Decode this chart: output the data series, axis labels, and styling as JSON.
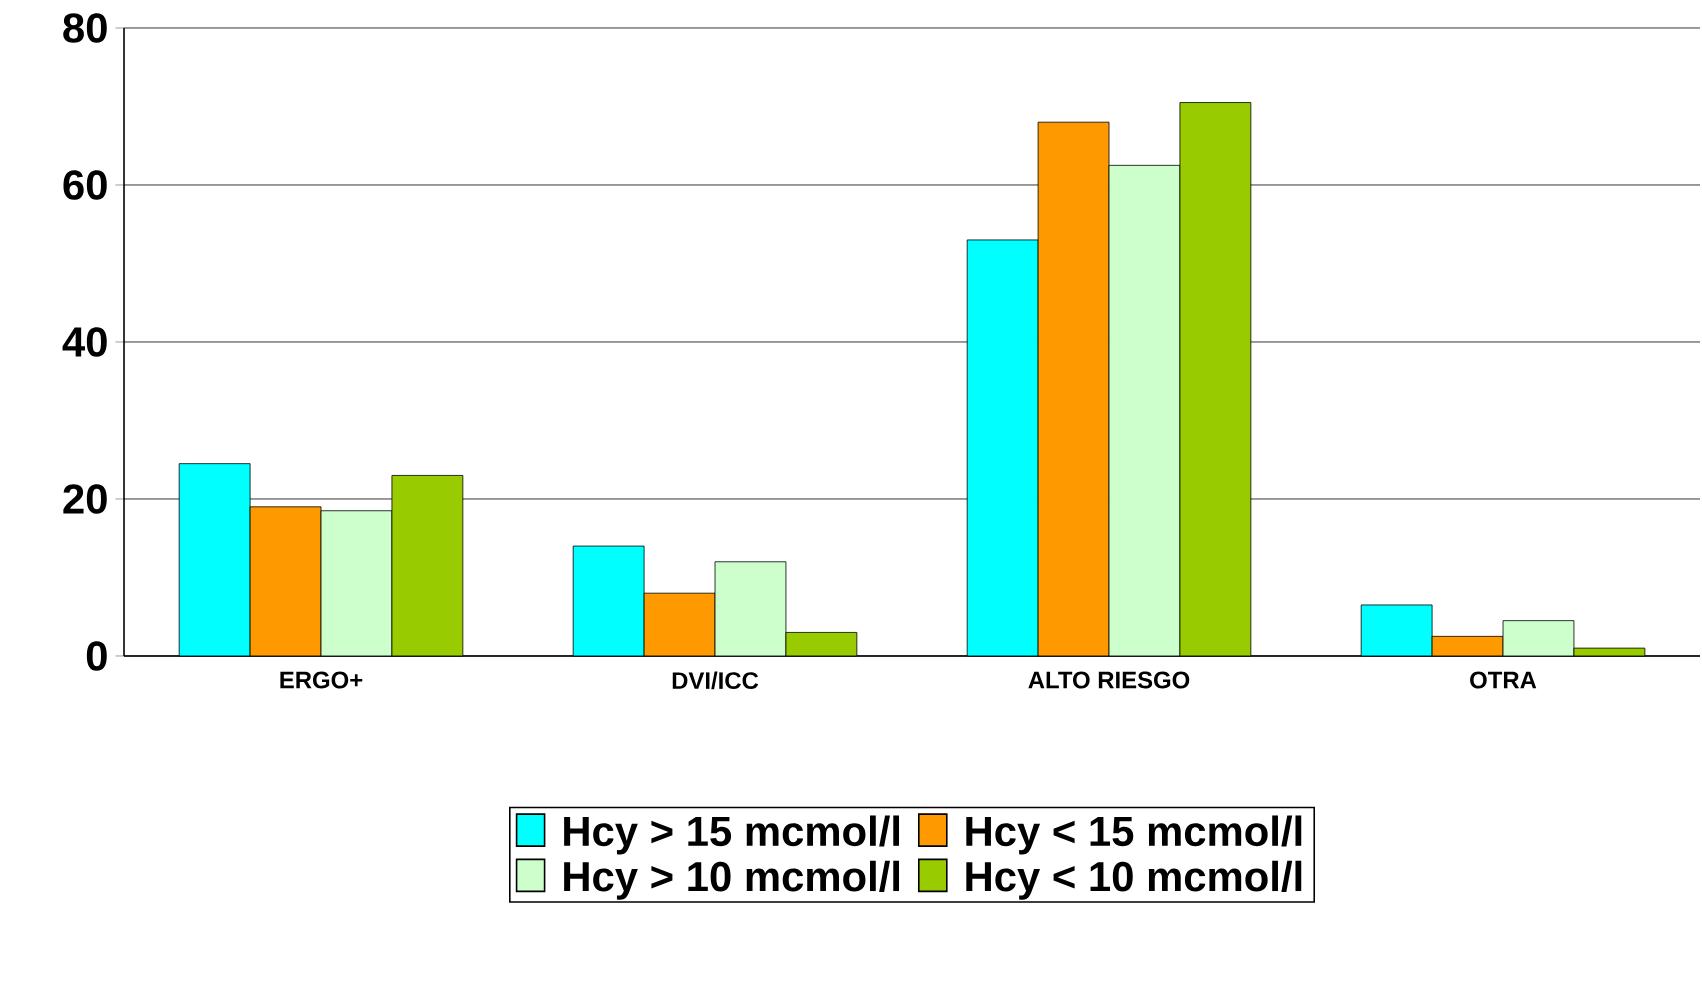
{
  "chart_data": {
    "type": "bar",
    "categories": [
      "ERGO+",
      "DVI/ICC",
      "ALTO RIESGO",
      "OTRA"
    ],
    "series": [
      {
        "name": "Hcy > 15 mcmol/l",
        "color": "#00ffff",
        "values": [
          24.5,
          14,
          53,
          6.5
        ]
      },
      {
        "name": "Hcy < 15 mcmol/l",
        "color": "#ff9900",
        "values": [
          19,
          8,
          68,
          2.5
        ]
      },
      {
        "name": "Hcy > 10 mcmol/l",
        "color": "#ccffcc",
        "values": [
          18.5,
          12,
          62.5,
          4.5
        ]
      },
      {
        "name": "Hcy < 10 mcmol/l",
        "color": "#99cc00",
        "values": [
          23,
          3,
          70.5,
          1
        ]
      }
    ],
    "ylim": [
      0,
      80
    ],
    "yticks": [
      0,
      20,
      40,
      60,
      80
    ],
    "grid": "y",
    "legend": "bottom"
  }
}
